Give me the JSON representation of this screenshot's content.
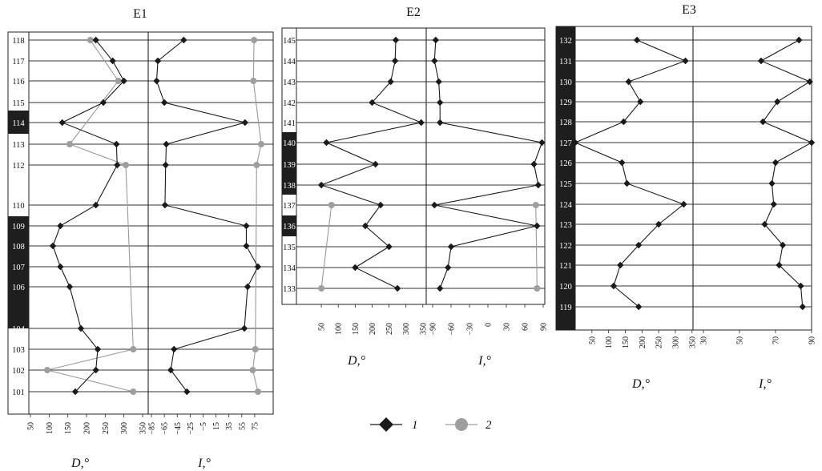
{
  "legend": {
    "items": [
      {
        "label": "1",
        "color": "#1a1a1a",
        "marker": "diamond"
      },
      {
        "label": "2",
        "color": "#9e9e9e",
        "marker": "circle"
      }
    ]
  },
  "chart_data": [
    {
      "type": "line",
      "title": "E1",
      "layers": [
        "118",
        "117",
        "116",
        "115",
        "114",
        "113",
        "112",
        "110",
        "109",
        "108",
        "107",
        "106",
        "104",
        "103",
        "102",
        "101"
      ],
      "highlighted_layers": [
        "114",
        "109",
        "108",
        "107",
        "106",
        "104"
      ],
      "left_panel": {
        "xlabel": "D,°",
        "xlim": [
          50,
          350
        ],
        "ticks": [
          "50",
          "100",
          "150",
          "200",
          "250",
          "300",
          "350"
        ],
        "series": [
          {
            "name": "1",
            "points": [
              [
                "118",
                225
              ],
              [
                "117",
                270
              ],
              [
                "116",
                300
              ],
              [
                "115",
                245
              ],
              [
                "114",
                135
              ],
              [
                "113",
                280
              ],
              [
                "112",
                282
              ],
              [
                "110",
                225
              ],
              [
                "109",
                130
              ],
              [
                "108",
                110
              ],
              [
                "107",
                130
              ],
              [
                "106",
                155
              ],
              [
                "104",
                185
              ],
              [
                "103",
                230
              ],
              [
                "102",
                225
              ],
              [
                "101",
                170
              ]
            ]
          },
          {
            "name": "2",
            "points": [
              [
                "118",
                210
              ],
              [
                "116",
                285
              ],
              [
                "113",
                155
              ],
              [
                "112",
                305
              ],
              [
                "103",
                325
              ],
              [
                "102",
                95
              ],
              [
                "101",
                325
              ]
            ]
          }
        ]
      },
      "right_panel": {
        "xlabel": "I,°",
        "xlim": [
          -90,
          90
        ],
        "ticks": [
          "-85",
          "-65",
          "-45",
          "-25",
          "-5",
          "15",
          "35",
          "55",
          "75"
        ],
        "series": [
          {
            "name": "1",
            "points": [
              [
                "118",
                -35
              ],
              [
                "117",
                -75
              ],
              [
                "116",
                -77
              ],
              [
                "115",
                -65
              ],
              [
                "114",
                60
              ],
              [
                "113",
                -62
              ],
              [
                "112",
                -63
              ],
              [
                "110",
                -64
              ],
              [
                "109",
                62
              ],
              [
                "108",
                62
              ],
              [
                "107",
                80
              ],
              [
                "106",
                64
              ],
              [
                "104",
                59
              ],
              [
                "103",
                -50
              ],
              [
                "102",
                -55
              ],
              [
                "101",
                -30
              ]
            ]
          },
          {
            "name": "2",
            "points": [
              [
                "118",
                74
              ],
              [
                "116",
                73
              ],
              [
                "113",
                85
              ],
              [
                "112",
                78
              ],
              [
                "103",
                76
              ],
              [
                "102",
                72
              ],
              [
                "101",
                80
              ]
            ]
          }
        ]
      }
    },
    {
      "type": "line",
      "title": "E2",
      "layers": [
        "145",
        "144",
        "143",
        "142",
        "141",
        "140",
        "139",
        "138",
        "137",
        "136",
        "135",
        "134",
        "133"
      ],
      "highlighted_layers": [
        "140",
        "139",
        "138",
        "136"
      ],
      "left_panel": {
        "xlabel": "D,°",
        "xlim": [
          0,
          360
        ],
        "ticks": [
          "50",
          "100",
          "150",
          "200",
          "250",
          "300",
          "350"
        ],
        "series": [
          {
            "name": "1",
            "points": [
              [
                "145",
                270
              ],
              [
                "144",
                268
              ],
              [
                "143",
                255
              ],
              [
                "142",
                200
              ],
              [
                "141",
                345
              ],
              [
                "140",
                65
              ],
              [
                "139",
                210
              ],
              [
                "138",
                50
              ],
              [
                "137",
                225
              ],
              [
                "136",
                180
              ],
              [
                "135",
                250
              ],
              [
                "134",
                150
              ],
              [
                "133",
                275
              ]
            ]
          },
          {
            "name": "2",
            "points": [
              [
                "137",
                80
              ],
              [
                "133",
                50
              ]
            ]
          }
        ]
      },
      "right_panel": {
        "xlabel": "I,°",
        "xlim": [
          -90,
          90
        ],
        "ticks": [
          "-90",
          "-60",
          "-30",
          "0",
          "30",
          "60",
          "90"
        ],
        "series": [
          {
            "name": "1",
            "points": [
              [
                "145",
                -85
              ],
              [
                "144",
                -87
              ],
              [
                "143",
                -80
              ],
              [
                "142",
                -78
              ],
              [
                "141",
                -78
              ],
              [
                "140",
                88
              ],
              [
                "139",
                75
              ],
              [
                "138",
                82
              ],
              [
                "137",
                -87
              ],
              [
                "136",
                80
              ],
              [
                "135",
                -60
              ],
              [
                "134",
                -65
              ],
              [
                "133",
                -78
              ]
            ]
          },
          {
            "name": "2",
            "points": [
              [
                "137",
                78
              ],
              [
                "133",
                80
              ]
            ]
          }
        ]
      }
    },
    {
      "type": "line",
      "title": "E3",
      "layers": [
        "132",
        "131",
        "130",
        "129",
        "128",
        "127",
        "126",
        "125",
        "124",
        "123",
        "122",
        "121",
        "120",
        "119"
      ],
      "highlighted_layers": [
        "132",
        "131",
        "130",
        "129",
        "128",
        "127",
        "126",
        "125",
        "124",
        "123",
        "122",
        "121",
        "120",
        "119"
      ],
      "left_panel": {
        "xlabel": "D,°",
        "xlim": [
          0,
          360
        ],
        "ticks": [
          "50",
          "100",
          "150",
          "200",
          "250",
          "300",
          "350"
        ],
        "series": [
          {
            "name": "1",
            "points": [
              [
                "132",
                185
              ],
              [
                "131",
                330
              ],
              [
                "130",
                160
              ],
              [
                "129",
                195
              ],
              [
                "128",
                145
              ],
              [
                "127",
                0
              ],
              [
                "126",
                140
              ],
              [
                "125",
                155
              ],
              [
                "124",
                325
              ],
              [
                "123",
                250
              ],
              [
                "122",
                190
              ],
              [
                "121",
                135
              ],
              [
                "120",
                115
              ],
              [
                "119",
                190
              ]
            ]
          }
        ]
      },
      "right_panel": {
        "xlabel": "I,°",
        "xlim": [
          30,
          90
        ],
        "ticks": [
          "30",
          "50",
          "70",
          "90"
        ],
        "series": [
          {
            "name": "1",
            "points": [
              [
                "132",
                83
              ],
              [
                "131",
                62
              ],
              [
                "130",
                89
              ],
              [
                "129",
                71
              ],
              [
                "128",
                63
              ],
              [
                "127",
                90
              ],
              [
                "126",
                70
              ],
              [
                "125",
                68
              ],
              [
                "124",
                69
              ],
              [
                "123",
                64
              ],
              [
                "122",
                74
              ],
              [
                "121",
                72
              ],
              [
                "120",
                84
              ],
              [
                "119",
                85
              ]
            ]
          }
        ]
      }
    }
  ]
}
